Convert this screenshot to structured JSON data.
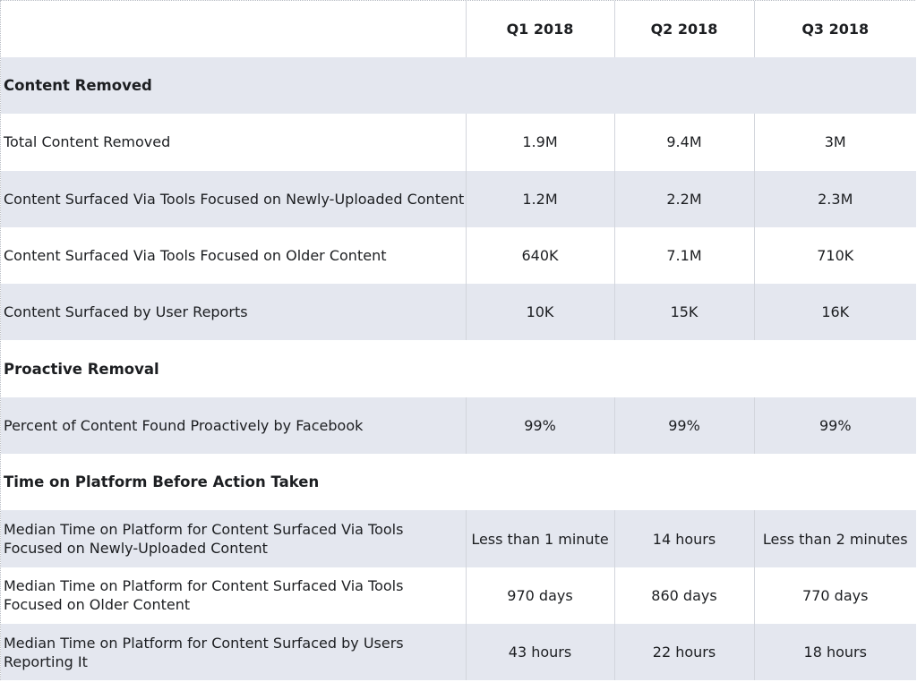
{
  "table": {
    "header": [
      "",
      "Q1 2018",
      "Q2 2018",
      "Q3 2018"
    ],
    "rows": [
      {
        "type": "section",
        "label": "Content Removed",
        "shade": true
      },
      {
        "type": "data",
        "label": "Total Content Removed",
        "values": [
          "1.9M",
          "9.4M",
          "3M"
        ],
        "shade": false
      },
      {
        "type": "data",
        "label": "Content Surfaced Via Tools Focused on Newly-Uploaded Content",
        "values": [
          "1.2M",
          "2.2M",
          "2.3M"
        ],
        "shade": true
      },
      {
        "type": "data",
        "label": "Content Surfaced Via Tools Focused on Older Content",
        "values": [
          "640K",
          "7.1M",
          "710K"
        ],
        "shade": false
      },
      {
        "type": "data",
        "label": "Content Surfaced by User Reports",
        "values": [
          "10K",
          "15K",
          "16K"
        ],
        "shade": true
      },
      {
        "type": "section",
        "label": "Proactive Removal",
        "shade": false
      },
      {
        "type": "data",
        "label": "Percent of Content Found Proactively by Facebook",
        "values": [
          "99%",
          "99%",
          "99%"
        ],
        "shade": true
      },
      {
        "type": "section",
        "label": "Time on Platform Before Action Taken",
        "shade": false
      },
      {
        "type": "data",
        "label": "Median Time on Platform for Content Surfaced Via Tools Focused on Newly-Uploaded Content",
        "values": [
          "Less than 1 minute",
          "14 hours",
          "Less than 2 minutes"
        ],
        "shade": true
      },
      {
        "type": "data",
        "label": "Median Time on Platform for Content Surfaced Via Tools Focused on Older Content",
        "values": [
          "970 days",
          "860 days",
          "770 days"
        ],
        "shade": false
      },
      {
        "type": "data",
        "label": "Median Time on Platform for Content Surfaced by Users Reporting It",
        "values": [
          "43 hours",
          "22 hours",
          "18 hours"
        ],
        "shade": true
      }
    ]
  }
}
